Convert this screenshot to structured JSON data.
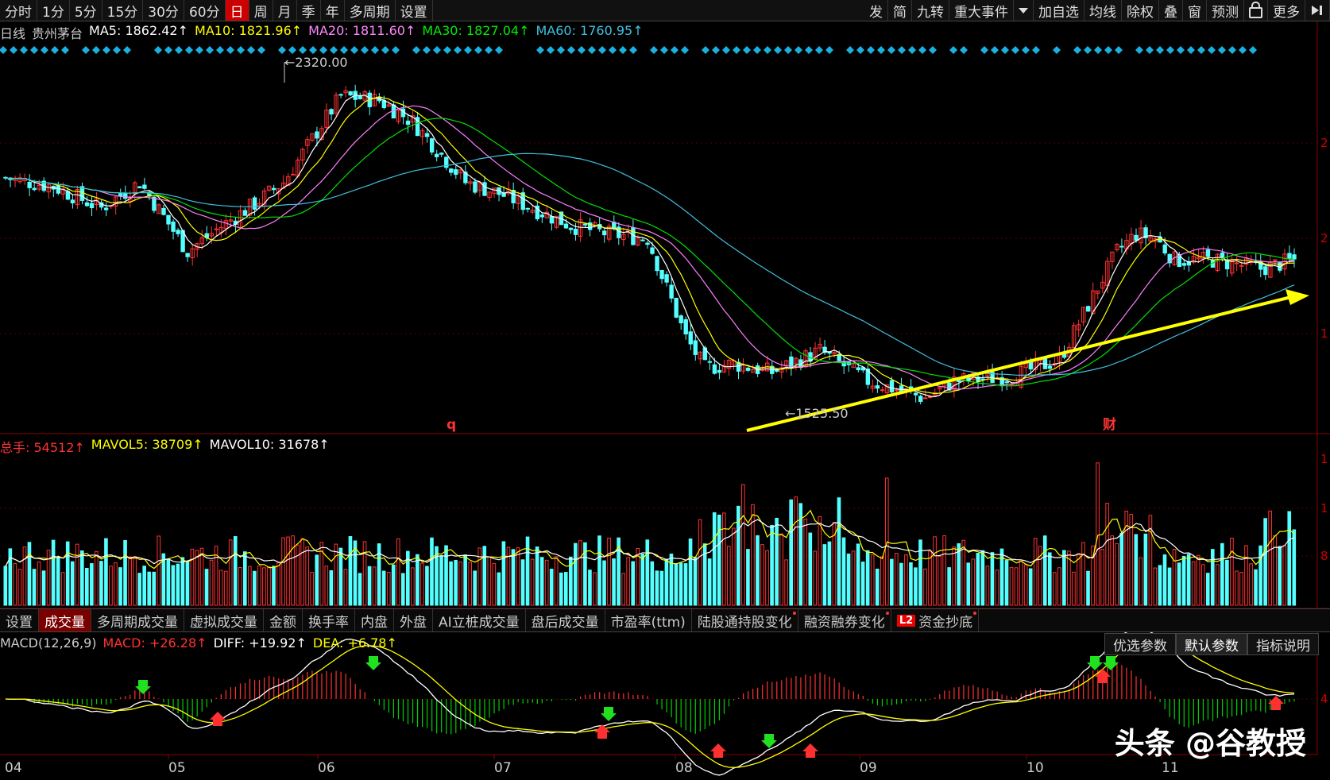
{
  "toolbar": {
    "left": [
      "分时",
      "1分",
      "5分",
      "15分",
      "30分",
      "60分",
      "日",
      "周",
      "月",
      "季",
      "年",
      "多周期",
      "设置"
    ],
    "active": "日",
    "right": [
      "发",
      "简",
      "九转",
      "重大事件",
      "加自选",
      "均线",
      "除权",
      "叠",
      "窗",
      "预测",
      "更多"
    ]
  },
  "main_legend": {
    "period": "日线",
    "stock": "贵州茅台",
    "ma5": "MA5: 1862.42↑",
    "ma10": "MA10: 1821.96↑",
    "ma20": "MA20: 1811.60↑",
    "ma30": "MA30: 1827.04↑",
    "ma60": "MA60: 1760.95↑"
  },
  "annotations": {
    "high": "2320.00",
    "low": "1525.50",
    "marker_q": "q",
    "marker_cai": "财"
  },
  "volume_legend": {
    "total": "总手: 54512↑",
    "mavol5": "MAVOL5: 38709↑",
    "mavol10": "MAVOL10: 31678↑"
  },
  "tabs": [
    "设置",
    "成交量",
    "多周期成交量",
    "虚拟成交量",
    "金额",
    "换手率",
    "内盘",
    "外盘",
    "AI立桩成交量",
    "盘后成交量",
    "市盈率(ttm)",
    "陆股通持股变化",
    "融资融券变化",
    "资金抄底"
  ],
  "tabs_active": "成交量",
  "l2_badge": "L2",
  "macd_legend": {
    "name": "MACD(12,26,9)",
    "macd": "MACD: +26.28↑",
    "diff": "DIFF: +19.92↑",
    "dea": "DEA: +6.78↑"
  },
  "param_buttons": [
    "优选参数",
    "默认参数",
    "指标说明"
  ],
  "x_labels": [
    "04",
    "05",
    "06",
    "07",
    "08",
    "09",
    "10",
    "11"
  ],
  "watermark": "头条 @谷教授",
  "right_axis_fragments": [
    "2",
    "2",
    "1",
    "1",
    "1",
    "8",
    "4"
  ],
  "colors": {
    "up": "#ff3232",
    "down": "#54ffff",
    "ma5": "#ffffff",
    "ma10": "#ffff00",
    "ma20": "#ff80ff",
    "ma30": "#00e000",
    "ma60": "#3fc0e0",
    "trend": "#ffff00"
  },
  "chart_data": {
    "type": "candlestick",
    "title": "贵州茅台 日线",
    "xlabel": "",
    "ylabel": "",
    "price_range": [
      1525.5,
      2320.0
    ],
    "highest": 2320.0,
    "lowest": 1525.5,
    "ma_values": {
      "MA5": 1862.42,
      "MA10": 1821.96,
      "MA20": 1811.6,
      "MA30": 1827.04,
      "MA60": 1760.95
    },
    "volume_values": {
      "total": 54512,
      "MAVOL5": 38709,
      "MAVOL10": 31678
    },
    "macd_values": {
      "MACD": 26.28,
      "DIFF": 19.92,
      "DEA": 6.78
    },
    "months": [
      "04",
      "05",
      "06",
      "07",
      "08",
      "09",
      "10",
      "11"
    ]
  }
}
